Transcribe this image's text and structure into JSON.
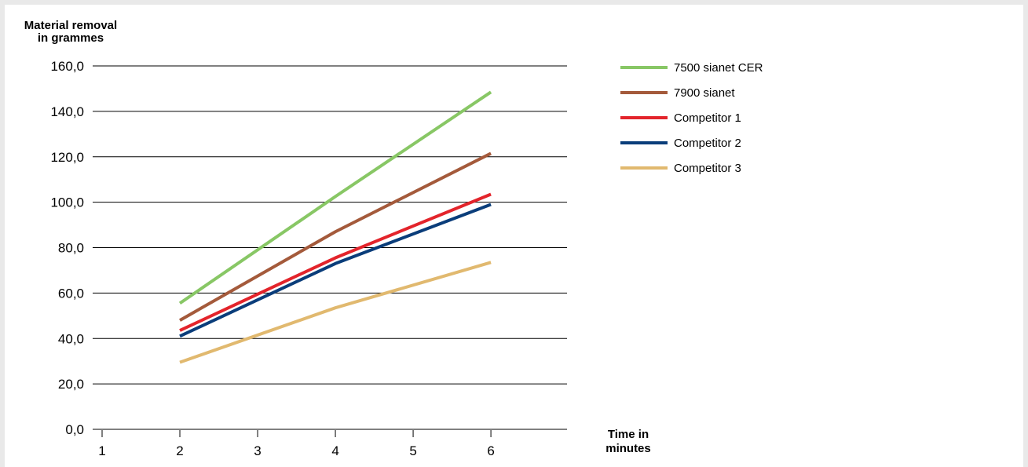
{
  "chart_data": {
    "type": "line",
    "ylabel": [
      "Material removal",
      "in grammes"
    ],
    "xlabel": [
      "Time in",
      "minutes"
    ],
    "x_ticks": [
      "1",
      "2",
      "3",
      "4",
      "5",
      "6"
    ],
    "y_ticks": [
      "0,0",
      "20,0",
      "40,0",
      "60,0",
      "80,0",
      "100,0",
      "120,0",
      "140,0",
      "160,0"
    ],
    "xlim": [
      1,
      7.1
    ],
    "ylim": [
      0,
      160
    ],
    "grid": "horizontal",
    "legend_position": "right",
    "x": [
      2,
      4,
      6
    ],
    "series": [
      {
        "name": "7500 sianet CER",
        "color": "#88c765",
        "values": [
          55.5,
          102.5,
          148.5
        ]
      },
      {
        "name": "7900 sianet",
        "color": "#a45a3b",
        "values": [
          48,
          87,
          121.5
        ]
      },
      {
        "name": "Competitor 1",
        "color": "#e3242b",
        "values": [
          43.5,
          75.5,
          103.5
        ]
      },
      {
        "name": "Competitor 2",
        "color": "#0a3d7a",
        "values": [
          41,
          73,
          99
        ]
      },
      {
        "name": "Competitor 3",
        "color": "#e1b96f",
        "values": [
          29.5,
          53.5,
          73.5
        ]
      }
    ]
  }
}
